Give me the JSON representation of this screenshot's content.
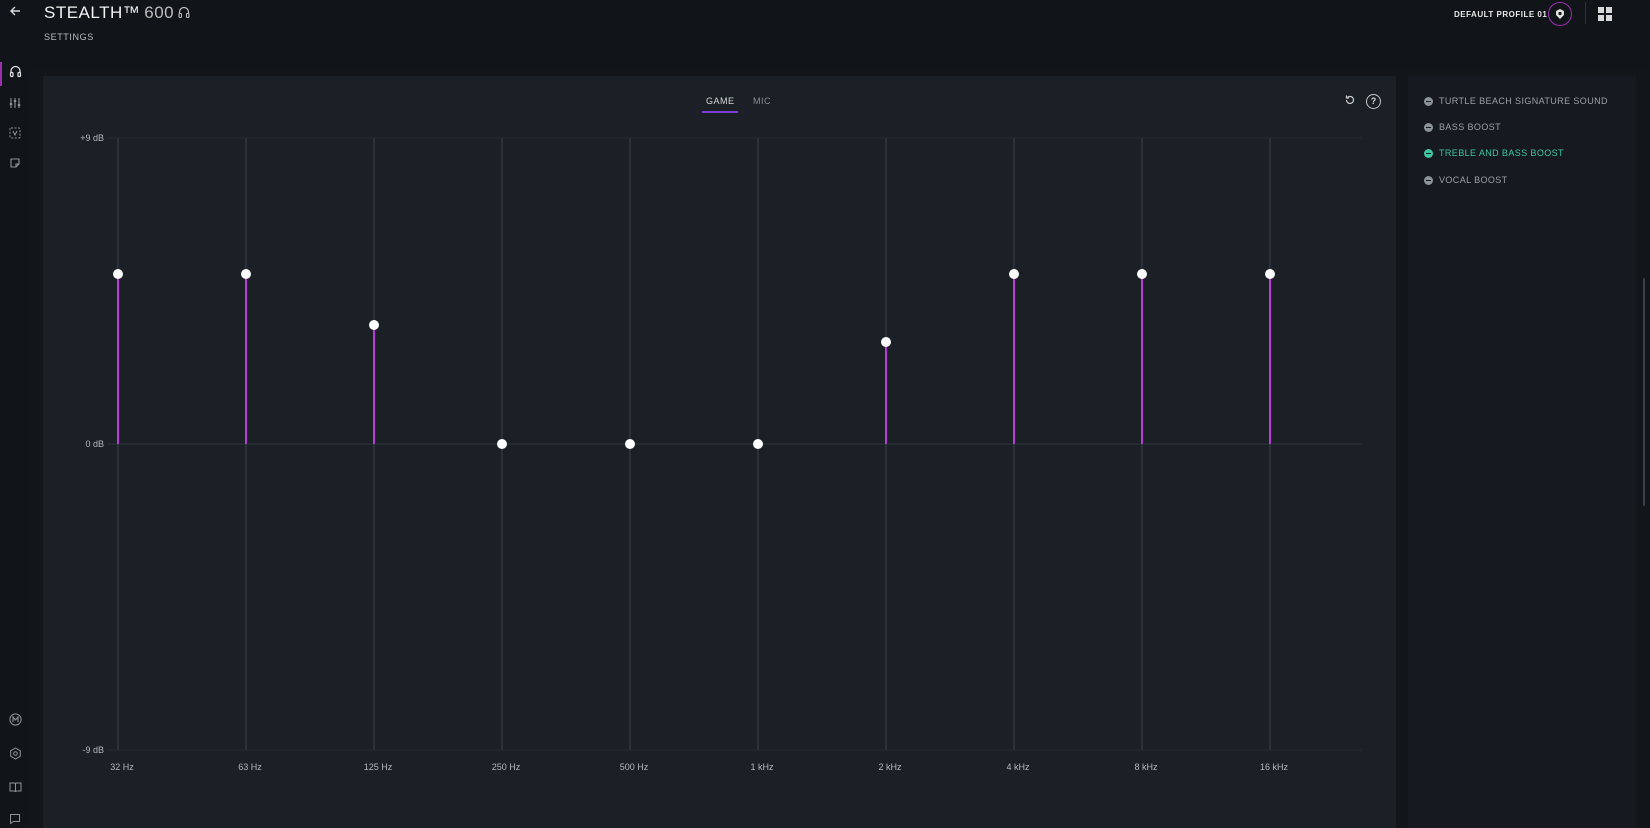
{
  "header": {
    "back_icon": "arrow-left-icon",
    "title": "STEALTH™",
    "model": "600",
    "subtitle": "SETTINGS",
    "profile_label": "DEFAULT PROFILE 01",
    "profile_icon": "turtle-beach-logo-icon",
    "grid_icon": "grid-icon"
  },
  "sidebar": {
    "items": [
      {
        "icon": "headset-icon",
        "active": true
      },
      {
        "icon": "sliders-icon",
        "active": false
      },
      {
        "icon": "microphone-badge-icon",
        "active": false
      },
      {
        "icon": "note-icon",
        "active": false
      }
    ],
    "bottom_items": [
      {
        "icon": "m-badge-icon"
      },
      {
        "icon": "settings-hex-icon"
      },
      {
        "icon": "book-icon"
      },
      {
        "icon": "chat-icon"
      }
    ]
  },
  "eq": {
    "tabs": [
      {
        "label": "GAME",
        "selected": true
      },
      {
        "label": "MIC",
        "selected": false
      }
    ],
    "reset_icon": "reset-icon",
    "help_label": "?"
  },
  "chart_data": {
    "type": "bar",
    "y_ticks": [
      "+9 dB",
      "0 dB",
      "-9 dB"
    ],
    "ylim": [
      -9,
      9
    ],
    "categories": [
      "32 Hz",
      "63 Hz",
      "125 Hz",
      "250 Hz",
      "500 Hz",
      "1 kHz",
      "2 kHz",
      "4 kHz",
      "8 kHz",
      "16 kHz"
    ],
    "values": [
      5,
      5,
      3.5,
      0,
      0,
      0,
      3,
      5,
      5,
      5
    ],
    "colors": {
      "bar": "#b63bd8",
      "handle": "#ffffff",
      "grid": "#3c424b",
      "zero_line": "#2f343c"
    }
  },
  "presets": {
    "items": [
      {
        "label": "TURTLE BEACH SIGNATURE SOUND",
        "active": false
      },
      {
        "label": "BASS BOOST",
        "active": false
      },
      {
        "label": "TREBLE AND BASS BOOST",
        "active": true
      },
      {
        "label": "VOCAL BOOST",
        "active": false
      }
    ],
    "active_color": "#3ec6a3"
  }
}
